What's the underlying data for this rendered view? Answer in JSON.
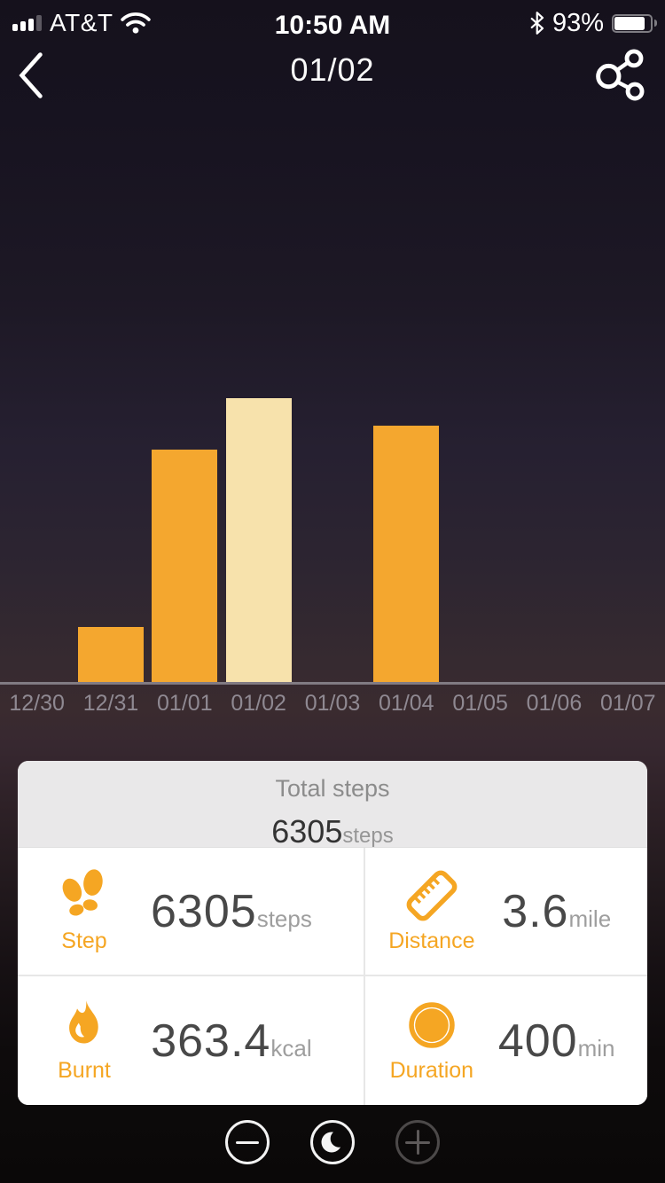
{
  "status_bar": {
    "carrier": "AT&T",
    "time": "10:50 AM",
    "battery_percent": "93%",
    "battery_level": 0.93,
    "icons": [
      "signal-icon",
      "wifi-icon",
      "bluetooth-icon",
      "battery-icon"
    ]
  },
  "nav": {
    "title": "01/02",
    "back_icon": "back-chevron-icon",
    "share_icon": "share-icon"
  },
  "chart_data": {
    "type": "bar",
    "categories": [
      "12/30",
      "12/31",
      "01/01",
      "01/02",
      "01/03",
      "01/04",
      "01/05",
      "01/06",
      "01/07"
    ],
    "values": [
      0,
      1220,
      5160,
      6305,
      0,
      5690,
      0,
      0,
      0
    ],
    "unit": "steps",
    "selected_index": 3,
    "selected_category": "01/02",
    "title": "",
    "xlabel": "",
    "ylabel": "",
    "legend": false,
    "grid": false,
    "colors": {
      "bar": "#F4A72F",
      "bar_selected": "#F7E2AC",
      "axis": "#817b83",
      "label": "#8f8992"
    }
  },
  "card": {
    "total_label": "Total steps",
    "total_value": "6305",
    "total_unit": "steps",
    "metrics": [
      {
        "id": "step",
        "icon": "footsteps-icon",
        "label": "Step",
        "value": "6305",
        "unit": "steps"
      },
      {
        "id": "distance",
        "icon": "ruler-icon",
        "label": "Distance",
        "value": "3.6",
        "unit": "mile"
      },
      {
        "id": "burnt",
        "icon": "flame-icon",
        "label": "Burnt",
        "value": "363.4",
        "unit": "kcal"
      },
      {
        "id": "duration",
        "icon": "pie-clock-icon",
        "label": "Duration",
        "value": "400",
        "unit": "min"
      }
    ],
    "accent_color": "#F5A623"
  },
  "bottom_bar": {
    "buttons": [
      {
        "id": "zoom-out",
        "icon": "minus-icon",
        "state": "enabled"
      },
      {
        "id": "night-mode",
        "icon": "moon-icon",
        "state": "enabled"
      },
      {
        "id": "zoom-in",
        "icon": "plus-icon",
        "state": "disabled"
      }
    ]
  }
}
